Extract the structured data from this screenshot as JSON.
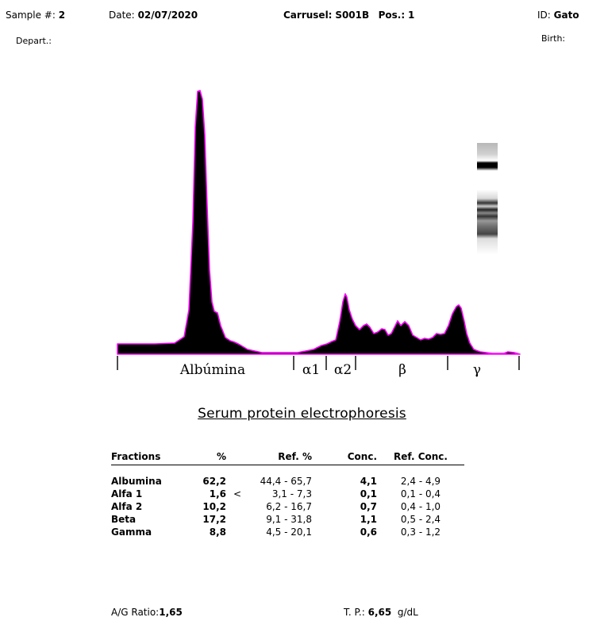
{
  "header": {
    "sample_label": "Sample #:",
    "sample_value": "2",
    "date_label": "Date:",
    "date_value": "02/07/2020",
    "carrusel_label": "Carrusel:",
    "carrusel_value": "S001B",
    "pos_label": "Pos.:",
    "pos_value": "1",
    "id_label": "ID:",
    "id_value": "Gato",
    "depart_label": "Depart.:",
    "birth_label": "Birth:"
  },
  "electropherogram": {
    "fraction_labels": [
      "Albúmina",
      "α1",
      "α2",
      "β",
      "γ"
    ],
    "colors": {
      "fill": "#000000",
      "outline": "#ff00ff"
    }
  },
  "report": {
    "title": "Serum protein electrophoresis",
    "columns": [
      "Fractions",
      "%",
      "Ref. %",
      "Conc.",
      "Ref. Conc."
    ],
    "rows": [
      {
        "fraction": "Albumina",
        "percent": "62,2",
        "flag": "",
        "ref_percent": "44,4 - 65,7",
        "conc": "4,1",
        "ref_conc": "2,4 -  4,9"
      },
      {
        "fraction": "Alfa 1",
        "percent": "1,6",
        "flag": "<",
        "ref_percent": "3,1 -  7,3",
        "conc": "0,1",
        "ref_conc": "0,1 -  0,4"
      },
      {
        "fraction": "Alfa 2",
        "percent": "10,2",
        "flag": "",
        "ref_percent": "6,2 - 16,7",
        "conc": "0,7",
        "ref_conc": "0,4 -  1,0"
      },
      {
        "fraction": "Beta",
        "percent": "17,2",
        "flag": "",
        "ref_percent": "9,1 - 31,8",
        "conc": "1,1",
        "ref_conc": "0,5 -  2,4"
      },
      {
        "fraction": "Gamma",
        "percent": "8,8",
        "flag": "",
        "ref_percent": "4,5 - 20,1",
        "conc": "0,6",
        "ref_conc": "0,3 -  1,2"
      }
    ]
  },
  "footer": {
    "ag_label": "A/G Ratio:",
    "ag_value": "1,65",
    "tp_label": "T. P.:",
    "tp_value": "6,65",
    "tp_unit": "g/dL"
  }
}
